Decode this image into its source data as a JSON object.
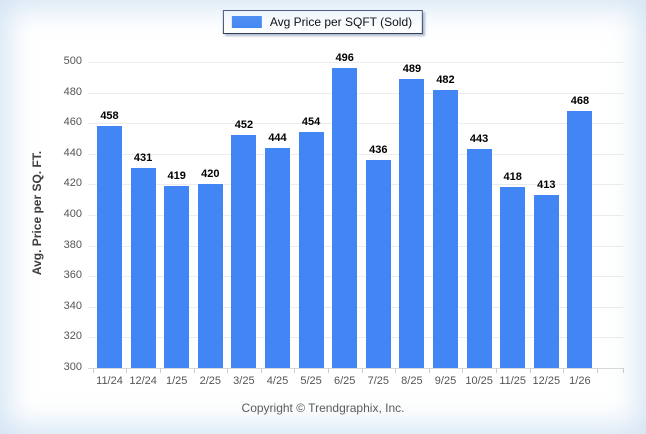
{
  "legend": {
    "label": "Avg Price per SQFT (Sold)"
  },
  "y_axis": {
    "title": "Avg. Price per SQ. FT."
  },
  "footer": {
    "copyright": "Copyright © Trendgraphix, Inc."
  },
  "colors": {
    "bar": "#4285f4",
    "grid": "#ececec",
    "baseline": "#d9d9d9",
    "tick_label": "#555555",
    "value_label": "#000000",
    "legend_border": "#2e3a5e"
  },
  "chart_data": {
    "type": "bar",
    "title": "Avg Price per SQFT (Sold)",
    "categories": [
      "11/24",
      "12/24",
      "1/25",
      "2/25",
      "3/25",
      "4/25",
      "5/25",
      "6/25",
      "7/25",
      "8/25",
      "9/25",
      "10/25",
      "11/25",
      "12/25",
      "1/26"
    ],
    "values": [
      458,
      431,
      419,
      420,
      452,
      444,
      454,
      496,
      436,
      489,
      482,
      443,
      418,
      413,
      468
    ],
    "xlabel": "",
    "ylabel": "Avg. Price per SQ. FT.",
    "ylim": [
      300,
      500
    ],
    "yticks": [
      300,
      320,
      340,
      360,
      380,
      400,
      420,
      440,
      460,
      480,
      500
    ],
    "grid": true,
    "legend_position": "top",
    "value_labels": true
  }
}
